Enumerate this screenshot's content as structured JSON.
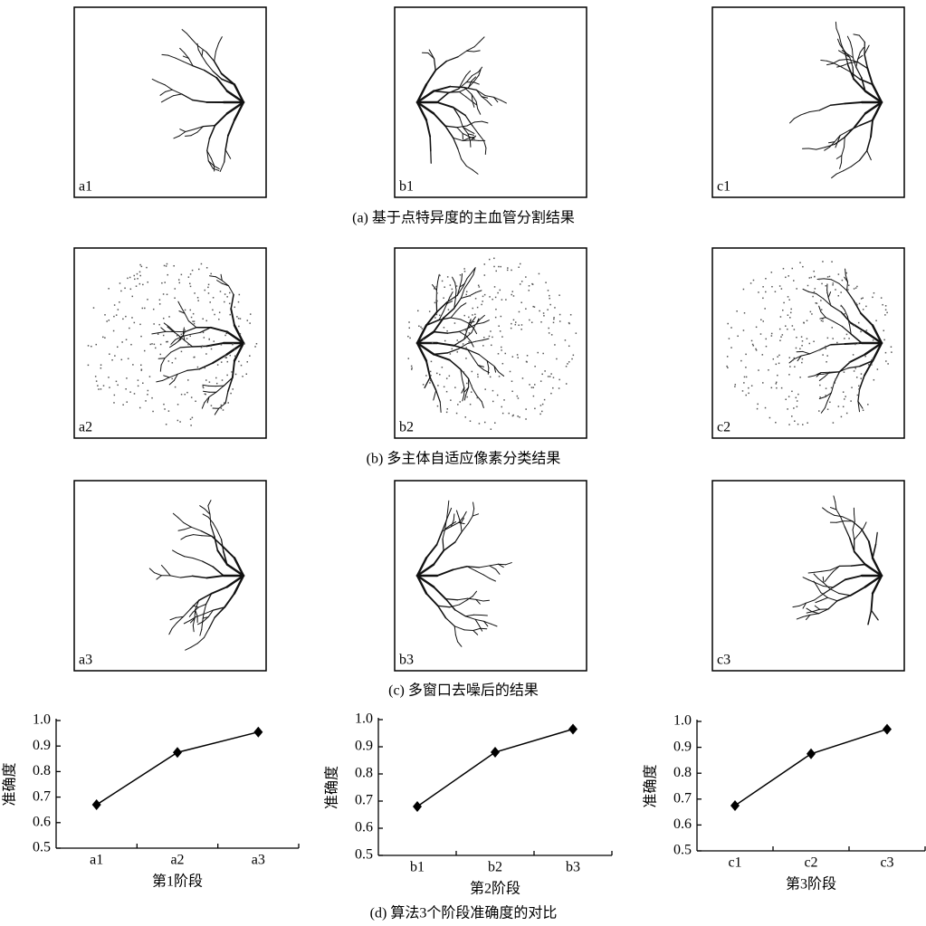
{
  "panels": [
    "a1",
    "b1",
    "c1",
    "a2",
    "b2",
    "c2",
    "a3",
    "b3",
    "c3"
  ],
  "captions": [
    "(a) 基于点特异度的主血管分割结果",
    "(b) 多主体自适应像素分类结果",
    "(c) 多窗口去噪后的结果",
    "(d) 算法3个阶段准确度的对比"
  ],
  "chart_data": [
    {
      "type": "line",
      "categories": [
        "a1",
        "a2",
        "a3"
      ],
      "values": [
        0.67,
        0.875,
        0.955
      ],
      "color": "#000000",
      "ylabel": "准确度",
      "xlabel": "第1阶段",
      "ylim": [
        0.5,
        1
      ],
      "yticks": [
        0.5,
        0.6,
        0.7,
        0.8,
        0.9,
        {
          "value": 1,
          "label": "1.0"
        }
      ]
    },
    {
      "type": "line",
      "categories": [
        "b1",
        "b2",
        "b3"
      ],
      "values": [
        0.68,
        0.88,
        0.965
      ],
      "color": "#000000",
      "ylabel": "准确度",
      "xlabel": "第2阶段",
      "ylim": [
        0.5,
        1
      ],
      "yticks": [
        0.5,
        0.6,
        0.7,
        0.8,
        0.9,
        {
          "value": 1,
          "label": "1.0"
        }
      ]
    },
    {
      "type": "line",
      "categories": [
        "c1",
        "c2",
        "c3"
      ],
      "values": [
        0.675,
        0.875,
        0.97
      ],
      "color": "#000000",
      "ylabel": "准确度",
      "xlabel": "第3阶段",
      "ylim": [
        0.5,
        1
      ],
      "yticks": [
        0.5,
        0.6,
        0.7,
        0.8,
        0.9,
        {
          "value": 1,
          "label": "1.0"
        }
      ]
    }
  ]
}
